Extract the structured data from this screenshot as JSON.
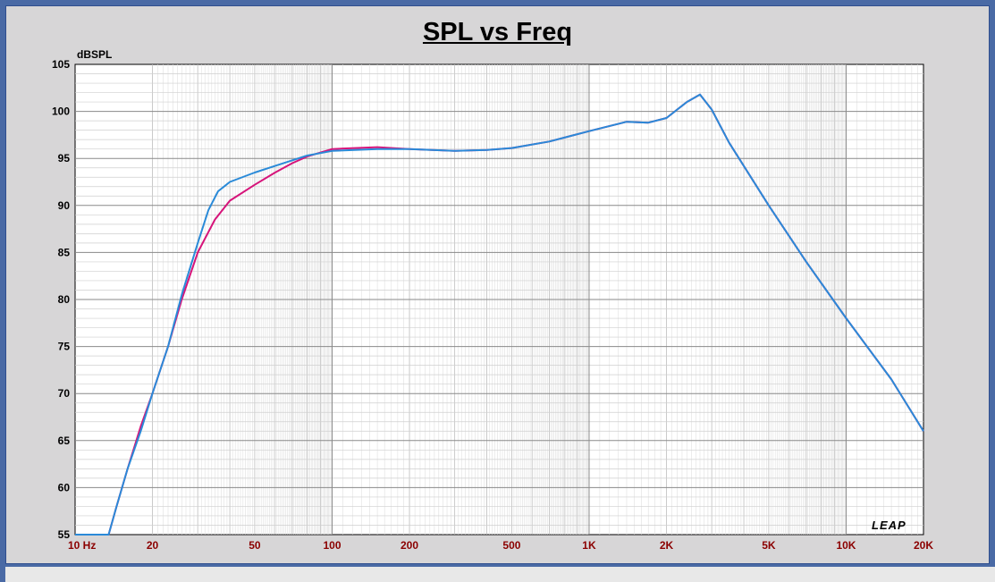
{
  "chart_data": {
    "type": "line",
    "title": "SPL vs Freq",
    "ylabel": "dBSPL",
    "xlabel": "",
    "x_scale": "log",
    "xlim": [
      10,
      20000
    ],
    "ylim": [
      55,
      105
    ],
    "grid": true,
    "y_ticks": [
      "55",
      "60",
      "65",
      "70",
      "75",
      "80",
      "85",
      "90",
      "95",
      "100",
      "105"
    ],
    "x_ticks": [
      {
        "value": 10,
        "label": "10  Hz"
      },
      {
        "value": 20,
        "label": "20"
      },
      {
        "value": 50,
        "label": "50"
      },
      {
        "value": 100,
        "label": "100"
      },
      {
        "value": 200,
        "label": "200"
      },
      {
        "value": 500,
        "label": "500"
      },
      {
        "value": 1000,
        "label": "1K"
      },
      {
        "value": 2000,
        "label": "2K"
      },
      {
        "value": 5000,
        "label": "5K"
      },
      {
        "value": 10000,
        "label": "10K"
      },
      {
        "value": 20000,
        "label": "20K"
      }
    ],
    "series": [
      {
        "color": "#d6147a",
        "points": [
          [
            10,
            55
          ],
          [
            13.5,
            55
          ],
          [
            14.5,
            58
          ],
          [
            16,
            62
          ],
          [
            18,
            66.5
          ],
          [
            20,
            70
          ],
          [
            23,
            75
          ],
          [
            26,
            80
          ],
          [
            30,
            85
          ],
          [
            35,
            88.5
          ],
          [
            40,
            90.5
          ],
          [
            50,
            92.2
          ],
          [
            60,
            93.5
          ],
          [
            70,
            94.5
          ],
          [
            80,
            95.2
          ],
          [
            100,
            96
          ],
          [
            150,
            96.2
          ],
          [
            200,
            96
          ],
          [
            300,
            95.8
          ],
          [
            400,
            95.9
          ],
          [
            500,
            96.1
          ],
          [
            700,
            96.8
          ],
          [
            1000,
            97.9
          ],
          [
            1400,
            98.9
          ],
          [
            1700,
            98.8
          ],
          [
            2000,
            99.3
          ],
          [
            2400,
            101
          ],
          [
            2700,
            101.8
          ],
          [
            3000,
            100.2
          ],
          [
            3500,
            96.7
          ],
          [
            5000,
            90
          ],
          [
            7000,
            84
          ],
          [
            10000,
            78
          ],
          [
            15000,
            71.5
          ],
          [
            20000,
            66
          ]
        ]
      },
      {
        "color": "#2a8ad8",
        "points": [
          [
            10,
            55
          ],
          [
            13.5,
            55
          ],
          [
            14.5,
            58
          ],
          [
            16,
            62
          ],
          [
            18,
            66
          ],
          [
            20,
            70
          ],
          [
            23,
            75
          ],
          [
            26,
            80.5
          ],
          [
            30,
            86
          ],
          [
            33,
            89.5
          ],
          [
            36,
            91.5
          ],
          [
            40,
            92.5
          ],
          [
            50,
            93.5
          ],
          [
            60,
            94.2
          ],
          [
            70,
            94.8
          ],
          [
            80,
            95.3
          ],
          [
            100,
            95.8
          ],
          [
            150,
            96
          ],
          [
            200,
            96
          ],
          [
            300,
            95.8
          ],
          [
            400,
            95.9
          ],
          [
            500,
            96.1
          ],
          [
            700,
            96.8
          ],
          [
            1000,
            97.9
          ],
          [
            1400,
            98.9
          ],
          [
            1700,
            98.8
          ],
          [
            2000,
            99.3
          ],
          [
            2400,
            101
          ],
          [
            2700,
            101.8
          ],
          [
            3000,
            100.2
          ],
          [
            3500,
            96.7
          ],
          [
            5000,
            90
          ],
          [
            7000,
            84
          ],
          [
            10000,
            78
          ],
          [
            15000,
            71.5
          ],
          [
            20000,
            66
          ]
        ]
      }
    ]
  },
  "logo_text": "LEAP"
}
